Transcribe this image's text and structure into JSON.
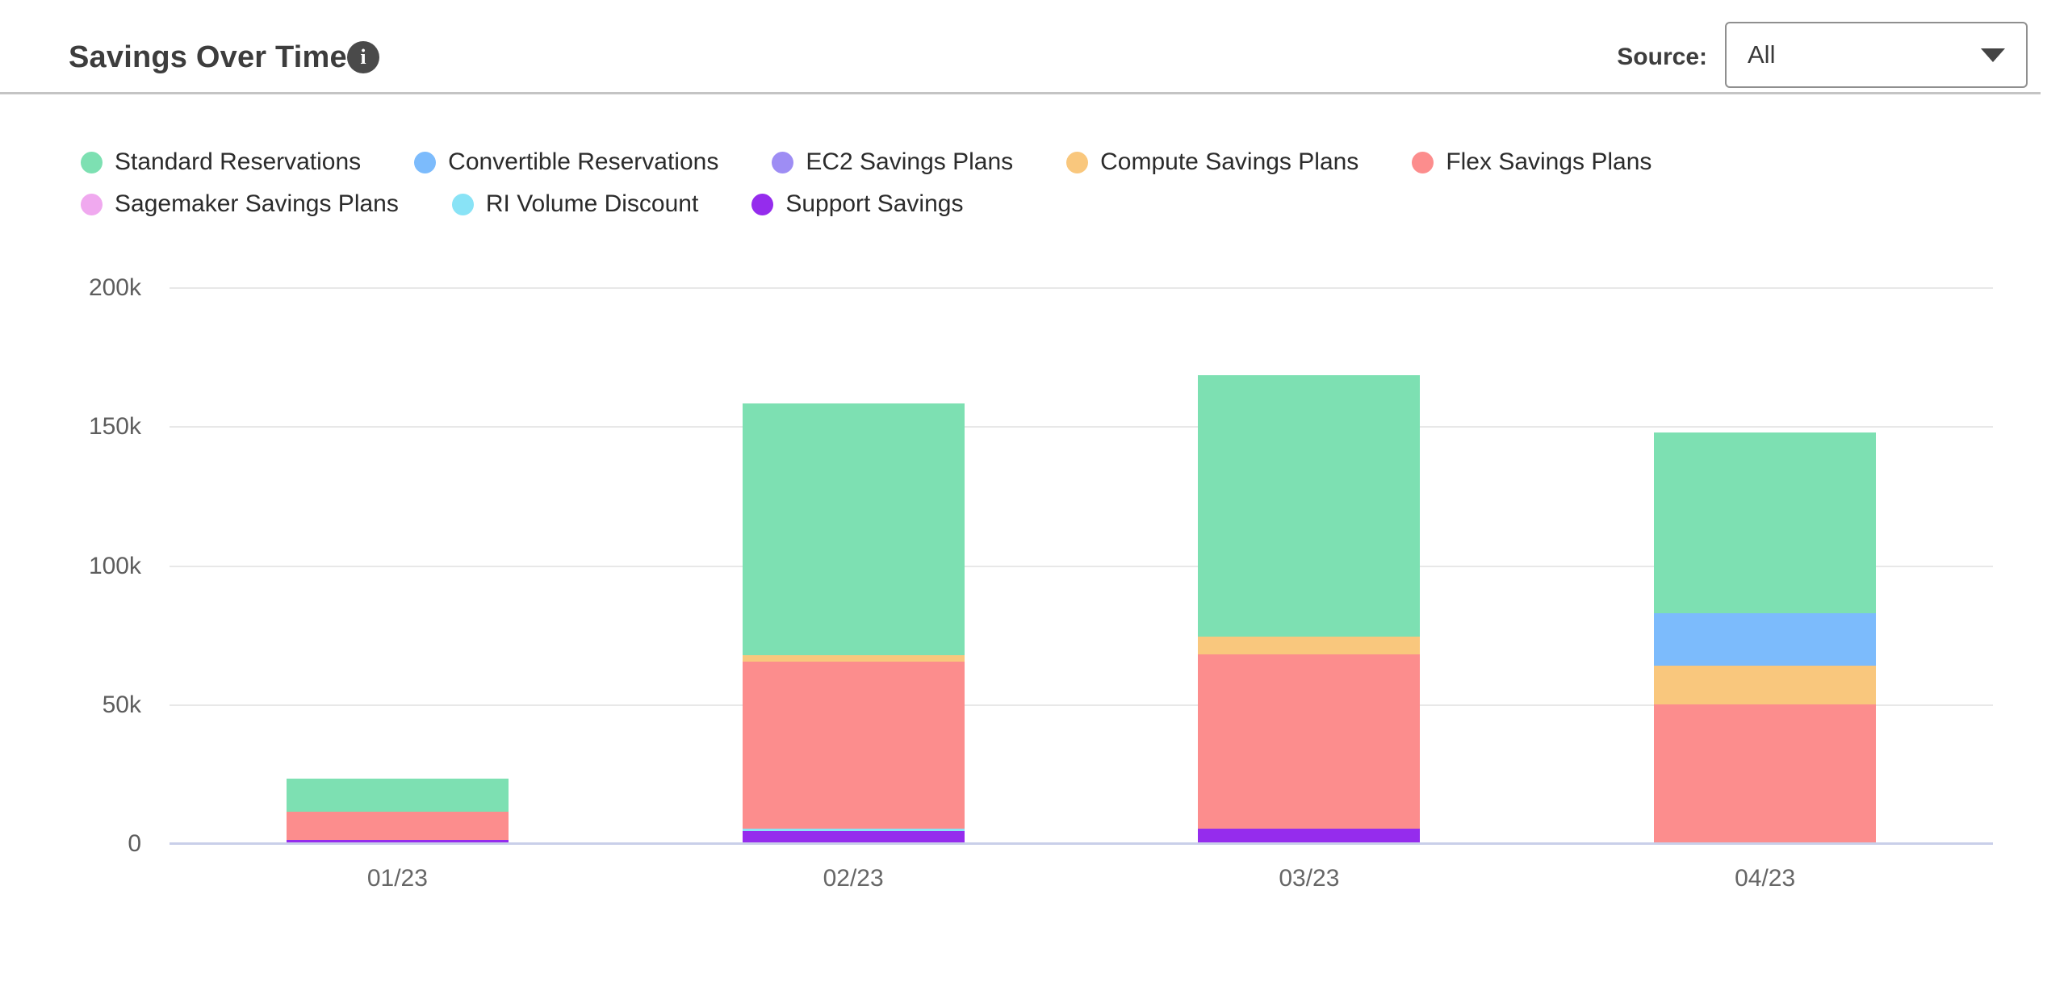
{
  "header": {
    "title": "Savings Over Time",
    "info_icon": "i",
    "source_label": "Source:",
    "source_value": "All"
  },
  "colors": {
    "title_text": "#3d3d3d",
    "info_icon_bg": "#4a4a4a",
    "divider": "#c4c4c4",
    "gridline": "#e8e8e8",
    "x_axis_line": "#c9cfe9",
    "axis_text": "#5d5d5d"
  },
  "chart_data": {
    "type": "bar",
    "stacked": true,
    "title": "Savings Over Time",
    "categories": [
      "01/23",
      "02/23",
      "03/23",
      "04/23"
    ],
    "series": [
      {
        "name": "Standard Reservations",
        "color": "#7de0b2",
        "values": [
          12000,
          90500,
          94000,
          65000
        ]
      },
      {
        "name": "Convertible Reservations",
        "color": "#7cbbfc",
        "values": [
          0,
          0,
          0,
          19000
        ]
      },
      {
        "name": "EC2 Savings Plans",
        "color": "#9e8df4",
        "values": [
          0,
          0,
          0,
          0
        ]
      },
      {
        "name": "Compute Savings Plans",
        "color": "#f9c77d",
        "values": [
          0,
          2500,
          6500,
          14000
        ]
      },
      {
        "name": "Flex Savings Plans",
        "color": "#fc8d8d",
        "values": [
          10000,
          60000,
          62500,
          49500
        ]
      },
      {
        "name": "Sagemaker Savings Plans",
        "color": "#f0a9ef",
        "values": [
          0,
          0,
          0,
          0
        ]
      },
      {
        "name": "RI Volume Discount",
        "color": "#89e3f6",
        "values": [
          0,
          1000,
          0,
          0
        ]
      },
      {
        "name": "Support Savings",
        "color": "#952ced",
        "values": [
          1000,
          4000,
          5000,
          0
        ]
      }
    ],
    "stack_order": "reverse-of-series",
    "ylim": [
      0,
      200000
    ],
    "yticks": [
      {
        "value": 0,
        "label": "0"
      },
      {
        "value": 50000,
        "label": "50k"
      },
      {
        "value": 100000,
        "label": "100k"
      },
      {
        "value": 150000,
        "label": "150k"
      },
      {
        "value": 200000,
        "label": "200k"
      }
    ],
    "grid": true,
    "legend_position": "top"
  }
}
